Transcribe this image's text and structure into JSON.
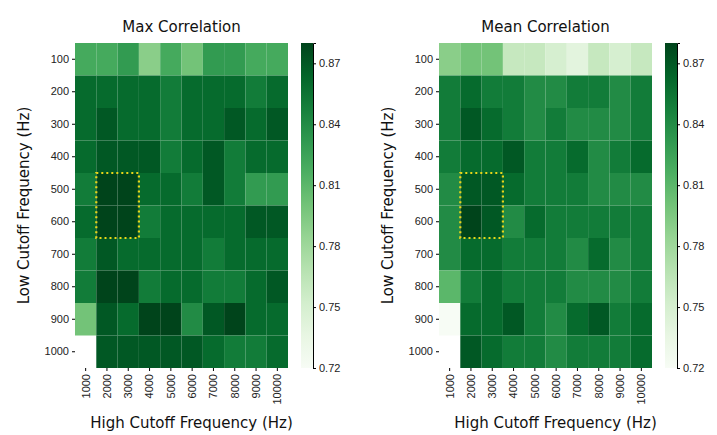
{
  "chart_data": [
    {
      "type": "heatmap",
      "title": "Max Correlation",
      "x_label": "High Cutoff Frequency (Hz)",
      "y_label": "Low Cutoff Frequency (Hz)",
      "x": [
        1000,
        2000,
        3000,
        4000,
        5000,
        6000,
        7000,
        8000,
        9000,
        10000
      ],
      "y": [
        100,
        200,
        300,
        400,
        500,
        600,
        700,
        800,
        900,
        1000
      ],
      "values": [
        [
          0.82,
          0.82,
          0.83,
          0.79,
          0.82,
          0.8,
          0.83,
          0.83,
          0.82,
          0.82
        ],
        [
          0.86,
          0.86,
          0.86,
          0.86,
          0.85,
          0.86,
          0.86,
          0.86,
          0.85,
          0.86
        ],
        [
          0.86,
          0.87,
          0.86,
          0.86,
          0.85,
          0.86,
          0.86,
          0.87,
          0.86,
          0.87
        ],
        [
          0.86,
          0.87,
          0.87,
          0.87,
          0.85,
          0.86,
          0.87,
          0.85,
          0.86,
          0.86
        ],
        [
          0.85,
          0.88,
          0.88,
          0.86,
          0.86,
          0.85,
          0.87,
          0.85,
          0.83,
          0.83
        ],
        [
          0.86,
          0.88,
          0.88,
          0.85,
          0.86,
          0.86,
          0.86,
          0.86,
          0.87,
          0.87
        ],
        [
          0.85,
          0.87,
          0.86,
          0.86,
          0.86,
          0.86,
          0.85,
          0.86,
          0.86,
          0.86
        ],
        [
          0.85,
          0.88,
          0.88,
          0.85,
          0.86,
          0.86,
          0.85,
          0.85,
          0.86,
          0.87
        ],
        [
          0.8,
          0.87,
          0.86,
          0.88,
          0.88,
          0.84,
          0.87,
          0.88,
          0.86,
          0.86
        ],
        [
          null,
          0.87,
          0.87,
          0.87,
          0.87,
          0.87,
          0.86,
          0.85,
          0.85,
          0.86
        ]
      ],
      "color_range": [
        0.72,
        0.88
      ],
      "color_ticks": [
        0.72,
        0.75,
        0.78,
        0.81,
        0.84,
        0.87
      ],
      "highlight": {
        "x": [
          2000,
          3000
        ],
        "y": [
          500,
          600
        ]
      }
    },
    {
      "type": "heatmap",
      "title": "Mean Correlation",
      "x_label": "High Cutoff Frequency (Hz)",
      "y_label": "Low Cutoff Frequency (Hz)",
      "x": [
        1000,
        2000,
        3000,
        4000,
        5000,
        6000,
        7000,
        8000,
        9000,
        10000
      ],
      "y": [
        100,
        200,
        300,
        400,
        500,
        600,
        700,
        800,
        900,
        1000
      ],
      "values": [
        [
          0.79,
          0.8,
          0.8,
          0.76,
          0.76,
          0.75,
          0.74,
          0.76,
          0.75,
          0.76
        ],
        [
          0.85,
          0.86,
          0.85,
          0.85,
          0.84,
          0.84,
          0.85,
          0.85,
          0.84,
          0.85
        ],
        [
          0.85,
          0.87,
          0.86,
          0.85,
          0.84,
          0.85,
          0.84,
          0.84,
          0.84,
          0.85
        ],
        [
          0.85,
          0.86,
          0.86,
          0.87,
          0.85,
          0.85,
          0.86,
          0.84,
          0.85,
          0.86
        ],
        [
          0.84,
          0.87,
          0.87,
          0.86,
          0.85,
          0.85,
          0.85,
          0.84,
          0.84,
          0.84
        ],
        [
          0.84,
          0.88,
          0.87,
          0.84,
          0.86,
          0.85,
          0.85,
          0.85,
          0.85,
          0.85
        ],
        [
          0.84,
          0.86,
          0.86,
          0.85,
          0.85,
          0.85,
          0.84,
          0.86,
          0.84,
          0.85
        ],
        [
          0.81,
          0.85,
          0.86,
          0.85,
          0.85,
          0.85,
          0.84,
          0.84,
          0.84,
          0.85
        ],
        [
          0.72,
          0.86,
          0.86,
          0.87,
          0.85,
          0.84,
          0.86,
          0.87,
          0.85,
          0.86
        ],
        [
          null,
          0.87,
          0.86,
          0.85,
          0.85,
          0.84,
          0.85,
          0.85,
          0.85,
          0.86
        ]
      ],
      "color_range": [
        0.72,
        0.88
      ],
      "color_ticks": [
        0.72,
        0.75,
        0.78,
        0.81,
        0.84,
        0.87
      ],
      "highlight": {
        "x": [
          2000,
          3000
        ],
        "y": [
          500,
          600
        ]
      }
    }
  ]
}
